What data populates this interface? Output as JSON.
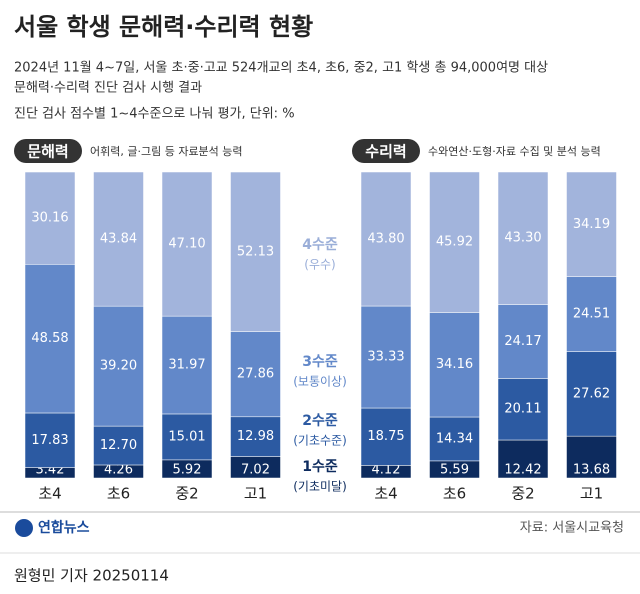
{
  "title": "서울 학생 문해력·수리력 현황",
  "subtitle": [
    "2024년 11월 4~7일, 서울 초·중·고교 524개교의 초4, 초6, 중2, 고1 학생 총 94,000여명 대상",
    "문해력·수리력 진단 검사 시행 결과",
    "진단 검사 점수별 1~4수준으로 나눠 평가, 단위: %"
  ],
  "levels": [
    {
      "name": "1수준",
      "note": "(기초미달)",
      "color": "#0d2b5e"
    },
    {
      "name": "2수준",
      "note": "(기초수준)",
      "color": "#2c5aa2"
    },
    {
      "name": "3수준",
      "note": "(보통이상)",
      "color": "#6288c9"
    },
    {
      "name": "4수준",
      "note": "(우수)",
      "color": "#a2b4dc"
    }
  ],
  "chart_data": [
    {
      "type": "stacked_bar",
      "label": "문해력",
      "description": "어휘력, 글·그림 등 자료분석 능력",
      "categories": [
        "초4",
        "초6",
        "중2",
        "고1"
      ],
      "ylim": [
        0,
        100
      ],
      "series": [
        {
          "values": [
            3.42,
            4.26,
            5.92,
            7.02
          ]
        },
        {
          "values": [
            17.83,
            12.7,
            15.01,
            12.98
          ],
          "value_labels": [
            "17.83",
            "12.70",
            "15.01",
            "12.98"
          ]
        },
        {
          "values": [
            48.58,
            39.2,
            31.97,
            27.86
          ],
          "value_labels": [
            "48.58",
            "39.20",
            "31.97",
            "27.86"
          ]
        },
        {
          "values": [
            30.16,
            43.84,
            47.1,
            52.13
          ],
          "value_labels": [
            "30.16",
            "43.84",
            "47.10",
            "52.13"
          ]
        }
      ]
    },
    {
      "type": "stacked_bar",
      "label": "수리력",
      "description": "수와연산·도형·자료 수집 및 분석 능력",
      "categories": [
        "초4",
        "초6",
        "중2",
        "고1"
      ],
      "ylim": [
        0,
        100
      ],
      "series": [
        {
          "values": [
            4.12,
            5.59,
            12.42,
            13.68
          ]
        },
        {
          "values": [
            18.75,
            14.34,
            20.11,
            27.62
          ]
        },
        {
          "values": [
            33.33,
            34.16,
            24.17,
            24.51
          ]
        },
        {
          "values": [
            43.8,
            45.92,
            43.3,
            34.19
          ],
          "value_labels": [
            "43.80",
            "45.92",
            "43.30",
            "34.19"
          ]
        }
      ]
    }
  ],
  "logo": "연합뉴스",
  "source": "자료: 서울시교육청",
  "credit": "원형민 기자  20250114"
}
